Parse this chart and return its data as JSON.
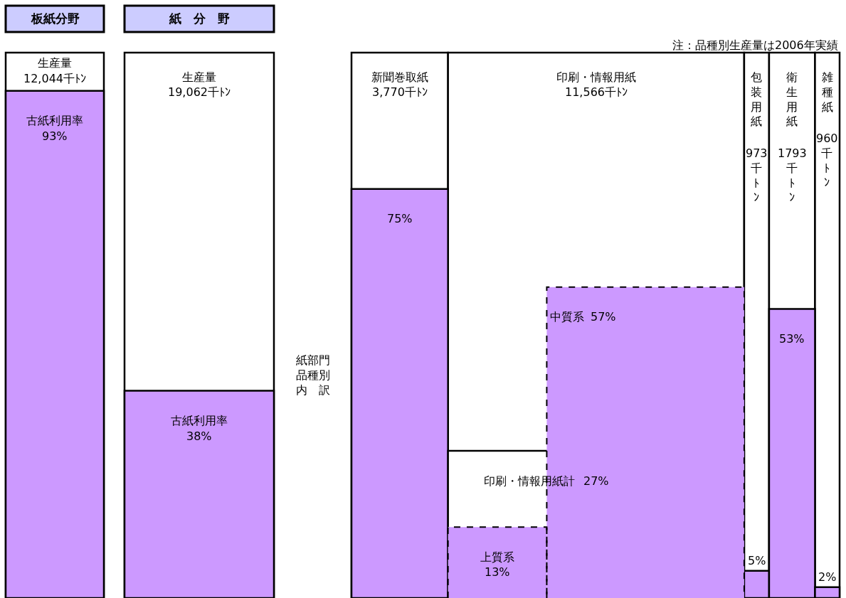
{
  "chart_data": {
    "type": "other",
    "categories": [
      "板紙分野",
      "紙　分　野",
      "新聞巻取紙",
      "印刷・情報用紙",
      "包装用紙",
      "衛生用紙",
      "雑種紙"
    ],
    "series": [
      {
        "color": "#ffffff",
        "values": [
          12044,
          19062,
          3770,
          11566,
          973,
          1793,
          960
        ],
        "value_labels": [
          "12,044千ﾄﾝ",
          "19,062千ﾄﾝ",
          "3,770千ﾄﾝ",
          "11,566千ﾄﾝ",
          "973千ﾄﾝ",
          "1793千ﾄﾝ",
          "960千ﾄﾝ"
        ]
      },
      {
        "colors": [
          "#cc99ff",
          "#cc99ff",
          "#cc99ff",
          "#ffffff",
          "#cc99ff",
          "#cc99ff",
          "#cc99ff"
        ],
        "values": [
          93,
          38,
          75,
          27,
          5,
          53,
          2
        ],
        "value_labels": [
          "93%",
          "38%",
          "75%",
          "27%",
          "5%",
          "53%",
          "2%"
        ]
      },
      {
        "color": "#cc99ff",
        "line_style": "dashed",
        "values": [
          null,
          null,
          null,
          57,
          null,
          null,
          null
        ],
        "value_labels": [
          null,
          null,
          null,
          "57%",
          null,
          null,
          null
        ]
      },
      {
        "color": "#cc99ff",
        "line_style": "dashed",
        "values": [
          null,
          null,
          null,
          13,
          null,
          null,
          null
        ],
        "value_labels": [
          null,
          null,
          null,
          "13%",
          null,
          null,
          null
        ]
      }
    ],
    "annotations": [
      "注：品種別生産量は2006年実績",
      "紙部門品種別内　訳",
      "生産量",
      "生産量",
      "古紙利用率",
      "古紙利用率",
      "印刷・情報用紙計",
      "中質系",
      "上質系"
    ]
  }
}
